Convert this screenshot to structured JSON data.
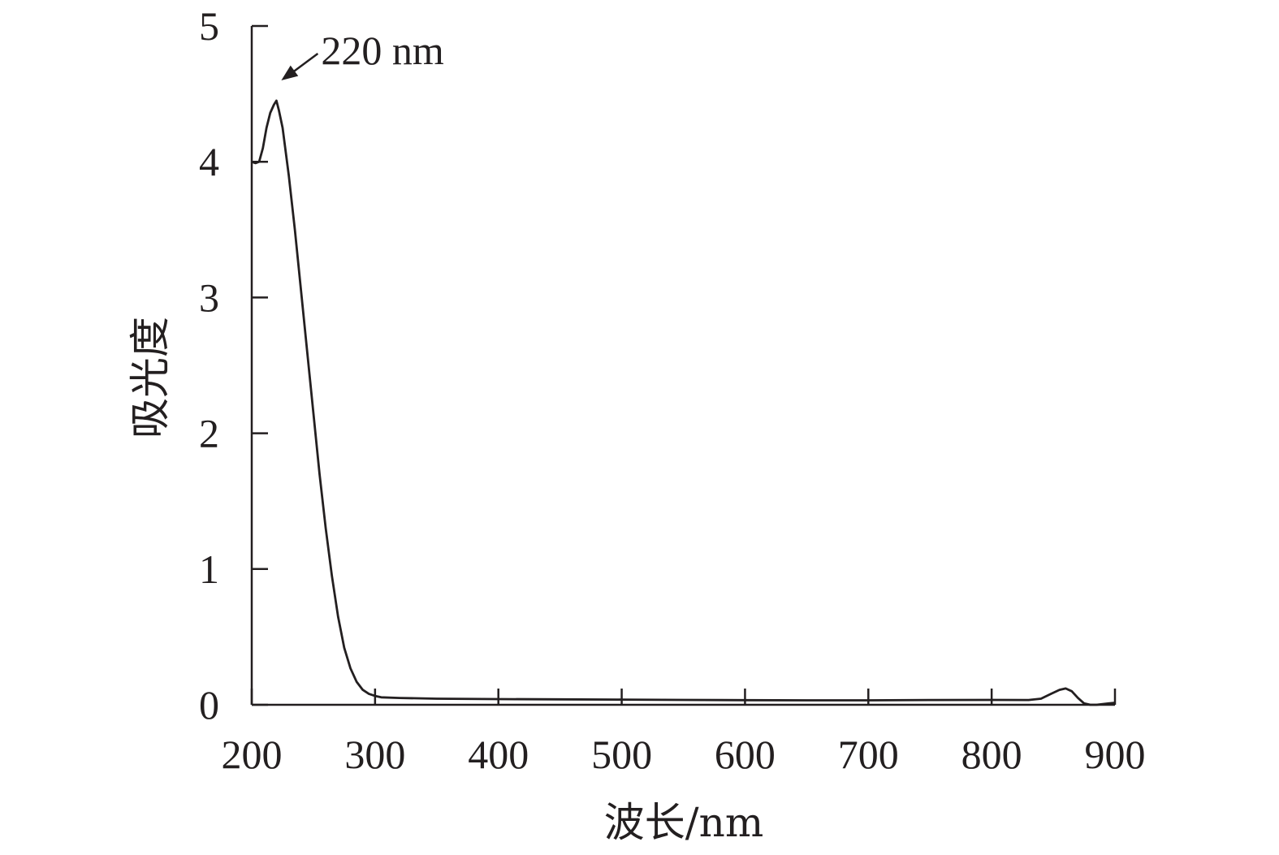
{
  "chart_data": {
    "type": "line",
    "title": "",
    "xlabel": "波长/nm",
    "ylabel": "吸光度",
    "xlim": [
      200,
      900
    ],
    "ylim": [
      0,
      5
    ],
    "xticks": [
      200,
      300,
      400,
      500,
      600,
      700,
      800,
      900
    ],
    "yticks": [
      0,
      1,
      2,
      3,
      4,
      5
    ],
    "grid": false,
    "legend": "none",
    "line_color": "#231f20",
    "annotations": [
      {
        "text": "220 nm",
        "x": 220,
        "y": 4.45,
        "arrow": true
      }
    ],
    "series": [
      {
        "points": [
          [
            200,
            4.0
          ],
          [
            203,
            3.99
          ],
          [
            206,
            4.0
          ],
          [
            209,
            4.1
          ],
          [
            212,
            4.25
          ],
          [
            215,
            4.36
          ],
          [
            218,
            4.42
          ],
          [
            220,
            4.45
          ],
          [
            222,
            4.38
          ],
          [
            225,
            4.25
          ],
          [
            230,
            3.9
          ],
          [
            235,
            3.5
          ],
          [
            240,
            3.05
          ],
          [
            245,
            2.6
          ],
          [
            250,
            2.15
          ],
          [
            255,
            1.7
          ],
          [
            260,
            1.3
          ],
          [
            265,
            0.95
          ],
          [
            270,
            0.65
          ],
          [
            275,
            0.42
          ],
          [
            280,
            0.27
          ],
          [
            285,
            0.17
          ],
          [
            290,
            0.11
          ],
          [
            295,
            0.08
          ],
          [
            300,
            0.065
          ],
          [
            305,
            0.055
          ],
          [
            320,
            0.05
          ],
          [
            350,
            0.045
          ],
          [
            400,
            0.042
          ],
          [
            450,
            0.04
          ],
          [
            500,
            0.038
          ],
          [
            550,
            0.036
          ],
          [
            600,
            0.034
          ],
          [
            650,
            0.033
          ],
          [
            700,
            0.033
          ],
          [
            750,
            0.035
          ],
          [
            800,
            0.036
          ],
          [
            830,
            0.035
          ],
          [
            840,
            0.045
          ],
          [
            848,
            0.08
          ],
          [
            855,
            0.11
          ],
          [
            860,
            0.12
          ],
          [
            865,
            0.1
          ],
          [
            870,
            0.05
          ],
          [
            875,
            0.01
          ],
          [
            880,
            0.0
          ],
          [
            885,
            0.0
          ],
          [
            890,
            0.005
          ],
          [
            895,
            0.01
          ],
          [
            900,
            0.015
          ]
        ]
      }
    ]
  }
}
